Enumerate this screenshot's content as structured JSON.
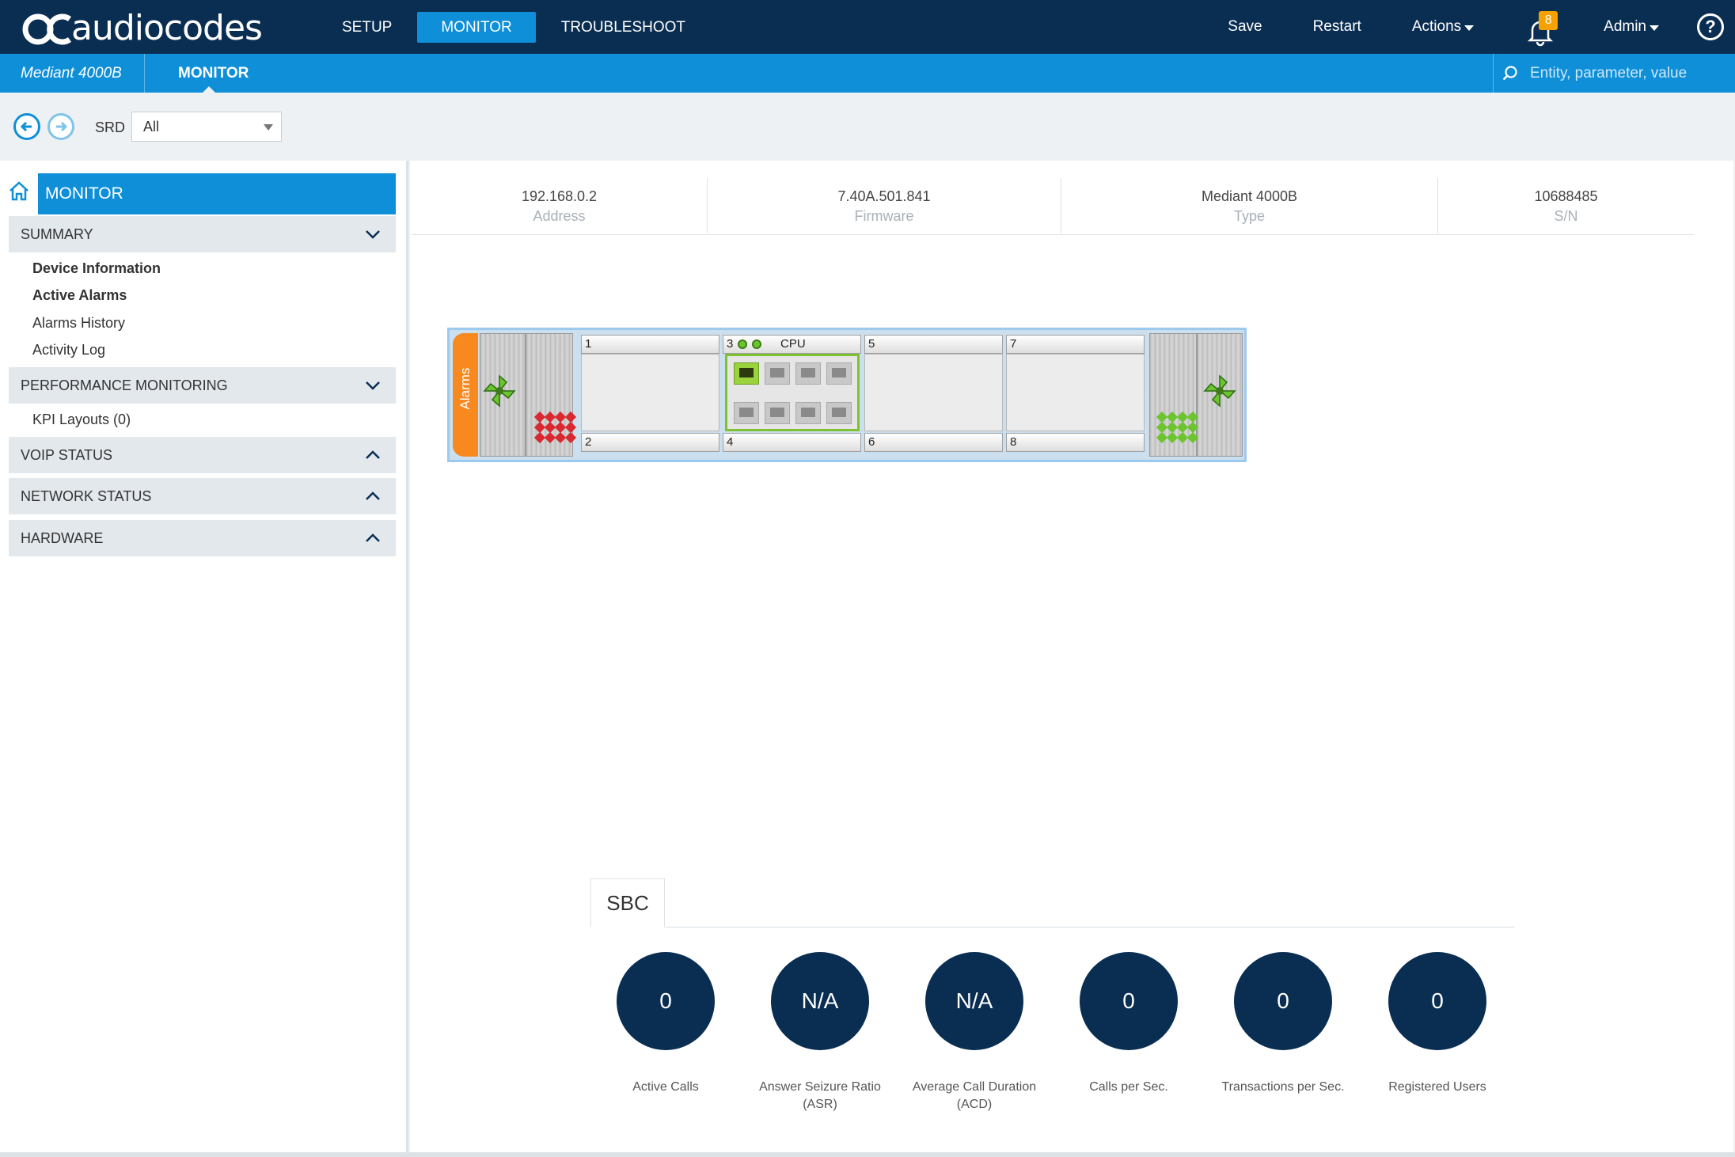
{
  "topbar": {
    "logo_text": "audiocodes",
    "nav": [
      {
        "label": "SETUP"
      },
      {
        "label": "MONITOR"
      },
      {
        "label": "TROUBLESHOOT"
      }
    ],
    "save_label": "Save",
    "restart_label": "Restart",
    "actions_label": "Actions",
    "notification_count": "8",
    "user_label": "Admin",
    "help_label": "?"
  },
  "subbar": {
    "device_name": "Mediant 4000B",
    "page_title": "MONITOR",
    "search_placeholder": "Entity, parameter, value"
  },
  "toolbar": {
    "srd_label": "SRD",
    "srd_value": "All"
  },
  "sidebar": {
    "header": "MONITOR",
    "summary": {
      "label": "SUMMARY",
      "items": [
        "Device Information",
        "Active Alarms",
        "Alarms History",
        "Activity Log"
      ]
    },
    "performance": {
      "label": "PERFORMANCE MONITORING",
      "items": [
        "KPI Layouts (0)"
      ]
    },
    "voip_status": "VOIP STATUS",
    "network_status": "NETWORK STATUS",
    "hardware": "HARDWARE"
  },
  "device_info": [
    {
      "value": "192.168.0.2",
      "label": "Address"
    },
    {
      "value": "7.40A.501.841",
      "label": "Firmware"
    },
    {
      "value": "Mediant 4000B",
      "label": "Type"
    },
    {
      "value": "10688485",
      "label": "S/N"
    }
  ],
  "chassis": {
    "alarms_label": "Alarms",
    "cpu_label": "CPU",
    "slots": [
      "1",
      "2",
      "3",
      "4",
      "5",
      "6",
      "7",
      "8"
    ],
    "colors": {
      "alarm_red": "#d9282f",
      "ok_green": "#6cc52f",
      "alarms_tab": "#f7891f"
    }
  },
  "sbc": {
    "tab_label": "SBC",
    "kpis": [
      {
        "value": "0",
        "label": "Active Calls"
      },
      {
        "value": "N/A",
        "label": "Answer Seizure Ratio (ASR)"
      },
      {
        "value": "N/A",
        "label": "Average Call Duration (ACD)"
      },
      {
        "value": "0",
        "label": "Calls per Sec."
      },
      {
        "value": "0",
        "label": "Transactions per Sec."
      },
      {
        "value": "0",
        "label": "Registered Users"
      }
    ]
  },
  "colors": {
    "navy": "#0a2e52",
    "accent": "#0e8fd8",
    "badge": "#f5a100"
  }
}
